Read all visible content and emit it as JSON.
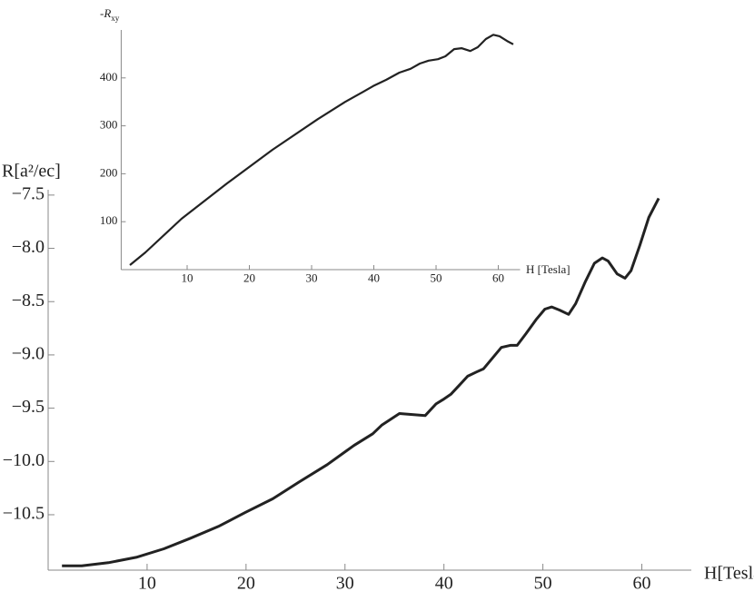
{
  "chart_data": [
    {
      "type": "line",
      "x_label": "H[Tesla]",
      "y_label": "R[a²/ec]",
      "xlim": [
        0,
        65
      ],
      "ylim": [
        -11.02,
        -7.45
      ],
      "xticks": [
        10,
        20,
        30,
        40,
        50,
        60
      ],
      "yticks": [
        {
          "value": -10.5,
          "label": "−10.5"
        },
        {
          "value": -10.0,
          "label": "−10.0"
        },
        {
          "value": -9.5,
          "label": "−9.5"
        },
        {
          "value": -9.0,
          "label": "−9.0"
        },
        {
          "value": -8.5,
          "label": "−8.5"
        },
        {
          "value": -8.0,
          "label": "−8.0"
        },
        {
          "value": -7.5,
          "label": "−7.5"
        }
      ],
      "color": "#222222",
      "x": [
        1.4,
        3.4,
        6.1,
        8.9,
        11.7,
        14.4,
        17.2,
        19.9,
        22.7,
        25.4,
        28.2,
        30.9,
        32.8,
        33.7,
        35.5,
        38.1,
        39.2,
        39.9,
        40.7,
        41.6,
        42.4,
        43.3,
        44.0,
        44.9,
        45.8,
        46.7,
        47.4,
        48.3,
        49.3,
        50.2,
        50.9,
        51.7,
        52.6,
        53.3,
        54.3,
        55.2,
        56.0,
        56.6,
        57.5,
        58.3,
        58.9,
        59.8,
        60.7,
        61.7
      ],
      "values": [
        -10.98,
        -10.98,
        -10.95,
        -10.9,
        -10.82,
        -10.72,
        -10.61,
        -10.48,
        -10.35,
        -10.19,
        -10.03,
        -9.85,
        -9.74,
        -9.66,
        -9.55,
        -9.57,
        -9.46,
        -9.42,
        -9.37,
        -9.28,
        -9.2,
        -9.16,
        -9.13,
        -9.03,
        -8.93,
        -8.91,
        -8.91,
        -8.8,
        -8.67,
        -8.57,
        -8.55,
        -8.58,
        -8.62,
        -8.52,
        -8.31,
        -8.14,
        -8.09,
        -8.12,
        -8.24,
        -8.28,
        -8.21,
        -7.97,
        -7.71,
        -7.53
      ]
    },
    {
      "type": "line",
      "x_label": "H [Tesla]",
      "y_label": {
        "main": "-R",
        "subscript": "xy"
      },
      "xlim": [
        -0.6,
        63.5
      ],
      "ylim": [
        0,
        500
      ],
      "xticks": [
        10,
        20,
        30,
        40,
        50,
        60
      ],
      "yticks": [
        100,
        200,
        300,
        400
      ],
      "color": "#222222",
      "x": [
        0.8,
        3.3,
        9.1,
        16.4,
        23.7,
        31.0,
        35.4,
        38.3,
        39.9,
        42.0,
        44.1,
        45.9,
        47.4,
        48.8,
        50.3,
        51.5,
        52.9,
        54.1,
        55.5,
        56.7,
        58.0,
        59.2,
        60.2,
        61.4,
        62.4
      ],
      "values": [
        9.5,
        36,
        106,
        180,
        250,
        314,
        350,
        371,
        383,
        396,
        411,
        419,
        430,
        436,
        439,
        445,
        460,
        462,
        456,
        464,
        481,
        490,
        487,
        477,
        470
      ]
    }
  ]
}
